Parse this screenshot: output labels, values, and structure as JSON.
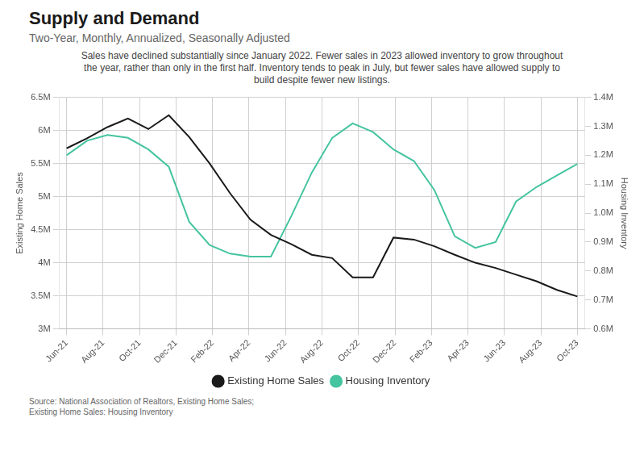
{
  "chart_data": {
    "type": "line",
    "title": "Supply and Demand",
    "subtitle": "Two-Year, Monthly, Annualized, Seasonally Adjusted",
    "annotations": [
      "Sales have declined substantially since January 2022. Fewer sales in 2023 allowed inventory to grow throughout",
      "the year, rather than only in the first half. Inventory tends to peak in July, but fewer sales have allowed supply to",
      "build despite fewer new listings."
    ],
    "source": [
      "Source:  National Association of Realtors, Existing Home Sales;",
      "Existing Home Sales: Housing Inventory"
    ],
    "ylabel": "Existing Home Sales",
    "y2label": "Housing Inventory",
    "x": [
      0,
      0.56,
      1.12,
      1.68,
      2.24,
      2.8,
      3.36,
      3.92,
      4.48,
      5.04,
      5.6,
      6.16,
      6.72,
      7.28,
      7.84,
      8.4,
      8.96,
      9.52,
      10.08,
      10.64,
      11.2,
      11.76,
      12.32,
      12.88,
      13.44,
      14
    ],
    "xlim": [
      -0.2,
      14.2
    ],
    "xticks": [
      {
        "value": 0,
        "label": "Jun-21"
      },
      {
        "value": 1,
        "label": "Aug-21"
      },
      {
        "value": 2,
        "label": "Oct-21"
      },
      {
        "value": 3,
        "label": "Dec-21"
      },
      {
        "value": 4,
        "label": "Feb-22"
      },
      {
        "value": 5,
        "label": "Apr-22"
      },
      {
        "value": 6,
        "label": "Jun-22"
      },
      {
        "value": 7,
        "label": "Aug-22"
      },
      {
        "value": 8,
        "label": "Oct-22"
      },
      {
        "value": 9,
        "label": "Dec-22"
      },
      {
        "value": 10,
        "label": "Feb-23"
      },
      {
        "value": 11,
        "label": "Apr-23"
      },
      {
        "value": 12,
        "label": "Jun-23"
      },
      {
        "value": 13,
        "label": "Aug-23"
      },
      {
        "value": 14,
        "label": "Oct-23"
      }
    ],
    "ylim": [
      3.0,
      6.5
    ],
    "yticks": [
      {
        "value": 3.0,
        "label": "3M"
      },
      {
        "value": 3.5,
        "label": "3.5M"
      },
      {
        "value": 4.0,
        "label": "4M"
      },
      {
        "value": 4.5,
        "label": "4.5M"
      },
      {
        "value": 5.0,
        "label": "5M"
      },
      {
        "value": 5.5,
        "label": "5.5M"
      },
      {
        "value": 6.0,
        "label": "6M"
      },
      {
        "value": 6.5,
        "label": "6.5M"
      }
    ],
    "y2lim": [
      0.6,
      1.4
    ],
    "y2ticks": [
      {
        "value": 0.6,
        "label": "0.6M"
      },
      {
        "value": 0.7,
        "label": "0.7M"
      },
      {
        "value": 0.8,
        "label": "0.8M"
      },
      {
        "value": 0.9,
        "label": "0.9M"
      },
      {
        "value": 1.0,
        "label": "1.0M"
      },
      {
        "value": 1.1,
        "label": "1.1M"
      },
      {
        "value": 1.2,
        "label": "1.2M"
      },
      {
        "value": 1.3,
        "label": "1.3M"
      },
      {
        "value": 1.4,
        "label": "1.4M"
      }
    ],
    "grid": true,
    "legend": "bottom",
    "series": [
      {
        "name": "Existing Home Sales",
        "color": "#1a1a1a",
        "values": [
          5.73,
          5.88,
          6.05,
          6.18,
          6.02,
          6.23,
          5.9,
          5.5,
          5.05,
          4.65,
          4.42,
          4.28,
          4.12,
          4.07,
          3.78,
          3.78,
          4.38,
          4.35,
          4.25,
          4.12,
          4.0,
          3.92,
          3.82,
          3.72,
          3.59,
          3.49
        ]
      },
      {
        "name": "Housing Inventory",
        "color": "#45c4a0",
        "axis": "y2",
        "values": [
          1.2,
          1.25,
          1.27,
          1.26,
          1.22,
          1.16,
          0.97,
          0.89,
          0.86,
          0.85,
          0.85,
          0.99,
          1.14,
          1.26,
          1.31,
          1.28,
          1.22,
          1.18,
          1.08,
          0.92,
          0.88,
          0.9,
          1.04,
          1.09,
          1.13,
          1.17
        ]
      }
    ]
  }
}
